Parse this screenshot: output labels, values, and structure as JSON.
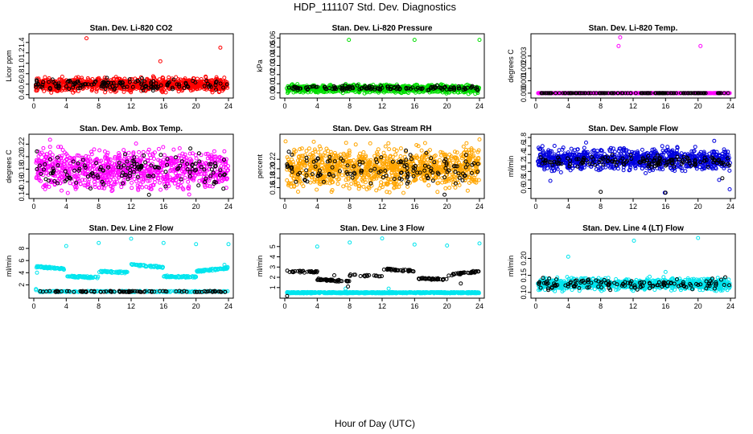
{
  "figure": {
    "title": "HDP_111107  Std. Dev. Diagnostics",
    "xlabel": "Hour of Day (UTC)"
  },
  "chart_data": [
    {
      "type": "scatter",
      "title": "Stan. Dev. Li-820 CO2",
      "ylabel": "Licor ppm",
      "xlim": [
        0,
        24
      ],
      "ylim": [
        0.38,
        1.52
      ],
      "xticks": [
        0,
        4,
        8,
        12,
        16,
        20,
        24
      ],
      "yticks": [
        0.4,
        0.6,
        0.8,
        1.0,
        1.2,
        1.4
      ],
      "series": [
        {
          "color": "#ff0000",
          "band": [
            0.46,
            0.72
          ],
          "n": 900,
          "outliers": [
            [
              6.5,
              1.48
            ],
            [
              15.6,
              1.04
            ],
            [
              23.0,
              1.3
            ],
            [
              8.0,
              0.62
            ]
          ]
        },
        {
          "color": "#000000",
          "band": [
            0.48,
            0.7
          ],
          "n": 140,
          "outliers": []
        }
      ]
    },
    {
      "type": "scatter",
      "title": "Stan. Dev. Li-820 Pressure",
      "ylabel": "kPa",
      "xlim": [
        0,
        24
      ],
      "ylim": [
        -0.003,
        0.062
      ],
      "xticks": [
        0,
        4,
        8,
        12,
        16,
        20,
        24
      ],
      "yticks": [
        0.0,
        0.01,
        0.02,
        0.03,
        0.04,
        0.05,
        0.06
      ],
      "series": [
        {
          "color": "#00dd00",
          "band": [
            0.0,
            0.009
          ],
          "n": 900,
          "outliers": [
            [
              7.9,
              0.058
            ],
            [
              16.0,
              0.058
            ],
            [
              24.0,
              0.058
            ]
          ]
        },
        {
          "color": "#000000",
          "band": [
            0.003,
            0.008
          ],
          "n": 140,
          "outliers": []
        }
      ]
    },
    {
      "type": "scatter",
      "title": "Stan. Dev. Li-820 Temp.",
      "ylabel": "degrees C",
      "xlim": [
        0,
        24
      ],
      "ylim": [
        -0.0002,
        0.0046
      ],
      "xticks": [
        0,
        4,
        8,
        12,
        16,
        20,
        24
      ],
      "yticks": [
        0.0,
        0.001,
        0.002,
        0.003
      ],
      "series": [
        {
          "color": "#ff00ff",
          "band": [
            0.0,
            0.0
          ],
          "n": 400,
          "outliers": [
            [
              10.4,
              0.0045
            ],
            [
              10.2,
              0.0038
            ],
            [
              20.3,
              0.0038
            ]
          ]
        },
        {
          "color": "#000000",
          "band": [
            0.0,
            0.0
          ],
          "n": 140,
          "outliers": []
        }
      ]
    },
    {
      "type": "scatter",
      "title": "Stan. Dev. Amb. Box Temp.",
      "ylabel": "degrees C",
      "xlim": [
        0,
        24
      ],
      "ylim": [
        0.137,
        0.232
      ],
      "xticks": [
        0,
        4,
        8,
        12,
        16,
        20,
        24
      ],
      "yticks": [
        0.14,
        0.16,
        0.18,
        0.2,
        0.22
      ],
      "series": [
        {
          "color": "#ff00ff",
          "band": [
            0.147,
            0.212
          ],
          "n": 900,
          "outliers": [
            [
              2.0,
              0.227
            ],
            [
              12.6,
              0.221
            ],
            [
              4.2,
              0.142
            ]
          ]
        },
        {
          "color": "#000000",
          "band": [
            0.15,
            0.205
          ],
          "n": 140,
          "outliers": [
            [
              14.2,
              0.139
            ],
            [
              19.3,
              0.213
            ]
          ]
        }
      ]
    },
    {
      "type": "scatter",
      "title": "Stan. Dev. Gas Stream RH",
      "ylabel": "percent",
      "xlim": [
        0,
        24
      ],
      "ylim": [
        0.142,
        0.268
      ],
      "xticks": [
        0,
        4,
        8,
        12,
        16,
        20,
        24
      ],
      "yticks": [
        0.16,
        0.18,
        0.2,
        0.22
      ],
      "series": [
        {
          "color": "#ffa500",
          "band": [
            0.158,
            0.245
          ],
          "n": 1100,
          "outliers": [
            [
              24.0,
              0.262
            ],
            [
              0.1,
              0.258
            ],
            [
              22.4,
              0.254
            ]
          ]
        },
        {
          "color": "#000000",
          "band": [
            0.165,
            0.232
          ],
          "n": 140,
          "outliers": [
            [
              19.7,
              0.145
            ],
            [
              0.5,
              0.236
            ]
          ]
        }
      ]
    },
    {
      "type": "scatter",
      "title": "Stan. Dev. Sample Flow",
      "ylabel": "ml/min",
      "xlim": [
        0,
        24
      ],
      "ylim": [
        0.42,
        1.82
      ],
      "xticks": [
        0,
        4,
        8,
        12,
        16,
        20,
        24
      ],
      "yticks": [
        0.6,
        0.8,
        1.0,
        1.2,
        1.4,
        1.6,
        1.8
      ],
      "series": [
        {
          "color": "#0000dd",
          "band": [
            1.02,
            1.55
          ],
          "n": 900,
          "outliers": [
            [
              1.8,
              0.78
            ],
            [
              3.1,
              0.98
            ],
            [
              22.6,
              0.8
            ],
            [
              23.9,
              0.58
            ],
            [
              6.2,
              1.68
            ],
            [
              22.0,
              1.72
            ],
            [
              15.9,
              0.5
            ]
          ]
        },
        {
          "color": "#000000",
          "band": [
            1.1,
            1.38
          ],
          "n": 140,
          "outliers": [
            [
              8.0,
              0.52
            ],
            [
              16.0,
              0.5
            ],
            [
              23.0,
              0.84
            ]
          ]
        }
      ]
    },
    {
      "type": "scatter",
      "title": "Stan. Dev. Line 2 Flow",
      "ylabel": "ml/min",
      "xlim": [
        0,
        24
      ],
      "ylim": [
        0.2,
        10.0
      ],
      "xticks": [
        0,
        4,
        8,
        12,
        16,
        20,
        24
      ],
      "yticks": [
        2,
        4,
        6,
        8
      ],
      "series": [
        {
          "color": "#00e5ee",
          "segments": [
            [
              0.3,
              4,
              5.0,
              4.6
            ],
            [
              4,
              8,
              3.4,
              3.2
            ],
            [
              8,
              12,
              4.2,
              4.0
            ],
            [
              12,
              16,
              5.3,
              4.9
            ],
            [
              16,
              20,
              3.4,
              3.3
            ],
            [
              20,
              24,
              4.2,
              4.8
            ]
          ],
          "baseline": 0.9,
          "n": 500,
          "outliers": [
            [
              4.0,
              8.4
            ],
            [
              8.0,
              8.9
            ],
            [
              12.0,
              9.6
            ],
            [
              16.0,
              8.9
            ],
            [
              20.0,
              8.7
            ],
            [
              24.0,
              8.7
            ],
            [
              23.5,
              5.3
            ],
            [
              0.4,
              4.0
            ]
          ]
        },
        {
          "color": "#000000",
          "baseline": 0.9,
          "n": 90,
          "outliers": []
        }
      ]
    },
    {
      "type": "scatter",
      "title": "Stan. Dev. Line 3 Flow",
      "ylabel": "ml/min",
      "xlim": [
        0,
        24
      ],
      "ylim": [
        0.2,
        6.0
      ],
      "xticks": [
        0,
        4,
        8,
        12,
        16,
        20,
        24
      ],
      "yticks": [
        1,
        2,
        3,
        4,
        5
      ],
      "series": [
        {
          "color": "#00e5ee",
          "baseline": 0.5,
          "n": 700,
          "outliers": [
            [
              4.0,
              5.0
            ],
            [
              8.0,
              5.4
            ],
            [
              12.0,
              5.8
            ],
            [
              16.0,
              5.2
            ],
            [
              20.0,
              5.1
            ],
            [
              24.0,
              5.3
            ],
            [
              7.5,
              0.9
            ],
            [
              12.8,
              0.9
            ]
          ]
        },
        {
          "color": "#000000",
          "segments": [
            [
              0.3,
              4,
              2.6,
              2.5
            ],
            [
              4,
              8,
              1.8,
              1.6
            ],
            [
              8,
              12,
              2.2,
              2.1
            ],
            [
              12,
              16,
              2.8,
              2.6
            ],
            [
              16,
              20,
              1.9,
              1.8
            ],
            [
              20,
              24,
              2.2,
              2.6
            ]
          ],
          "n": 200,
          "outliers": [
            [
              7.8,
              1.1
            ],
            [
              6.1,
              2.2
            ],
            [
              21.7,
              1.4
            ]
          ]
        }
      ]
    },
    {
      "type": "scatter",
      "title": "Stan. Dev. Line 4 (LT) Flow",
      "ylabel": "ml/min",
      "xlim": [
        0,
        24
      ],
      "ylim": [
        0.09,
        0.265
      ],
      "xticks": [
        0,
        4,
        8,
        12,
        16,
        20,
        24
      ],
      "yticks": [
        0.1,
        0.15,
        0.2
      ],
      "series": [
        {
          "color": "#00e5ee",
          "band": [
            0.107,
            0.142
          ],
          "n": 900,
          "outliers": [
            [
              4.0,
              0.205
            ],
            [
              12.1,
              0.252
            ],
            [
              20.0,
              0.26
            ],
            [
              16.0,
              0.16
            ]
          ]
        },
        {
          "color": "#000000",
          "band": [
            0.11,
            0.14
          ],
          "n": 130,
          "outliers": []
        }
      ]
    }
  ]
}
